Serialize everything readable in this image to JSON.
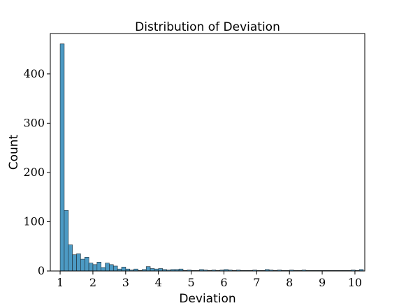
{
  "chart_data": {
    "type": "bar",
    "title": "Distribution of Deviation",
    "xlabel": "Deviation",
    "ylabel": "Count",
    "xlim": [
      0.7,
      10.3
    ],
    "ylim": [
      0,
      482
    ],
    "x_ticks": [
      1,
      2,
      3,
      4,
      5,
      6,
      7,
      8,
      9,
      10
    ],
    "y_ticks": [
      0,
      100,
      200,
      300,
      400
    ],
    "grid": false,
    "bin_width": 0.1251,
    "bin_start": 1.0,
    "bar_color": "#4c9ac4",
    "edge_color": "#1f2b33",
    "values": [
      461,
      123,
      53,
      33,
      35,
      24,
      28,
      16,
      13,
      18,
      7,
      16,
      13,
      10,
      4,
      8,
      4,
      2,
      4,
      1,
      3,
      9,
      5,
      4,
      5,
      3,
      2,
      3,
      3,
      4,
      1,
      2,
      1,
      1,
      3,
      2,
      1,
      2,
      1,
      2,
      3,
      2,
      1,
      2,
      1,
      1,
      1,
      2,
      1,
      1,
      3,
      2,
      1,
      2,
      1,
      1,
      2,
      1,
      1,
      2,
      1,
      1,
      1,
      1,
      1,
      1,
      1,
      1,
      1,
      1,
      1,
      2,
      1,
      3
    ]
  }
}
